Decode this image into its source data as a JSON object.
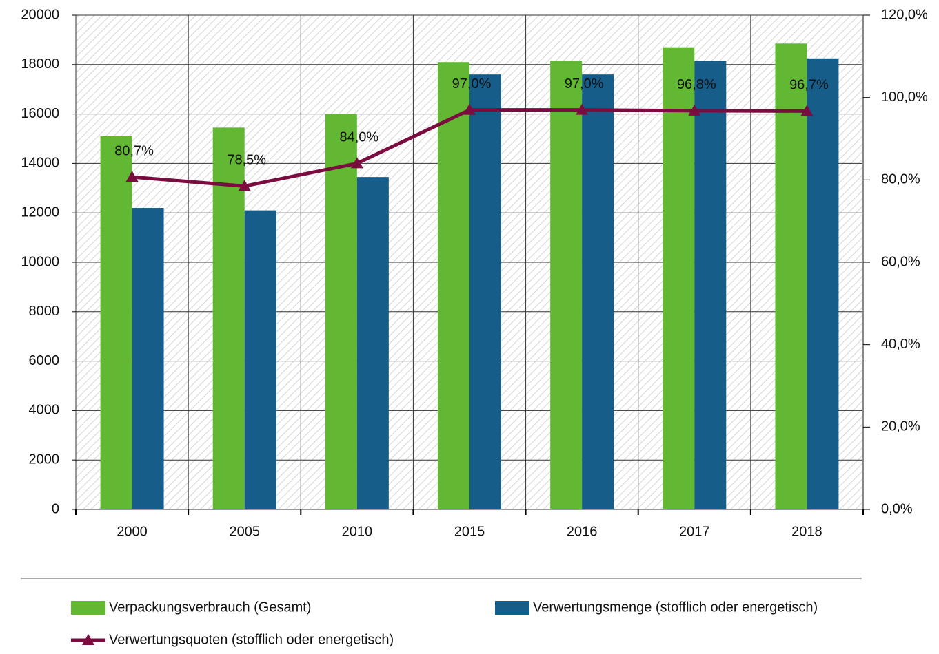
{
  "chart_data": {
    "type": "bar",
    "categories": [
      "2000",
      "2005",
      "2010",
      "2015",
      "2016",
      "2017",
      "2018"
    ],
    "series": [
      {
        "name": "Verpackungsverbrauch (Gesamt)",
        "type": "bar",
        "color": "#62b832",
        "values": [
          15100,
          15450,
          16000,
          18100,
          18150,
          18700,
          18850
        ]
      },
      {
        "name": "Verwertungsmenge (stofflich oder energetisch)",
        "type": "bar",
        "color": "#165d89",
        "values": [
          12200,
          12100,
          13450,
          17600,
          17600,
          18150,
          18250
        ]
      },
      {
        "name": "Verwertungsquoten (stofflich oder energetisch)",
        "type": "line",
        "axis": "y2",
        "color": "#7b0c3f",
        "values": [
          80.7,
          78.5,
          84.0,
          97.0,
          97.0,
          96.8,
          96.7
        ],
        "value_labels": [
          "80,7%",
          "78,5%",
          "84,0%",
          "97,0%",
          "97,0%",
          "96,8%",
          "96,7%"
        ]
      }
    ],
    "ylim": [
      0,
      20000
    ],
    "yticks": [
      0,
      2000,
      4000,
      6000,
      8000,
      10000,
      12000,
      14000,
      16000,
      18000,
      20000
    ],
    "y2lim": [
      0,
      120
    ],
    "y2ticks": [
      {
        "value": 0,
        "label": "0,0%"
      },
      {
        "value": 20,
        "label": "20,0%"
      },
      {
        "value": 40,
        "label": "40,0%"
      },
      {
        "value": 60,
        "label": "60,0%"
      },
      {
        "value": 80,
        "label": "80,0%"
      },
      {
        "value": 100,
        "label": "100,0%"
      },
      {
        "value": 120,
        "label": "120,0%"
      }
    ],
    "grid": true
  }
}
